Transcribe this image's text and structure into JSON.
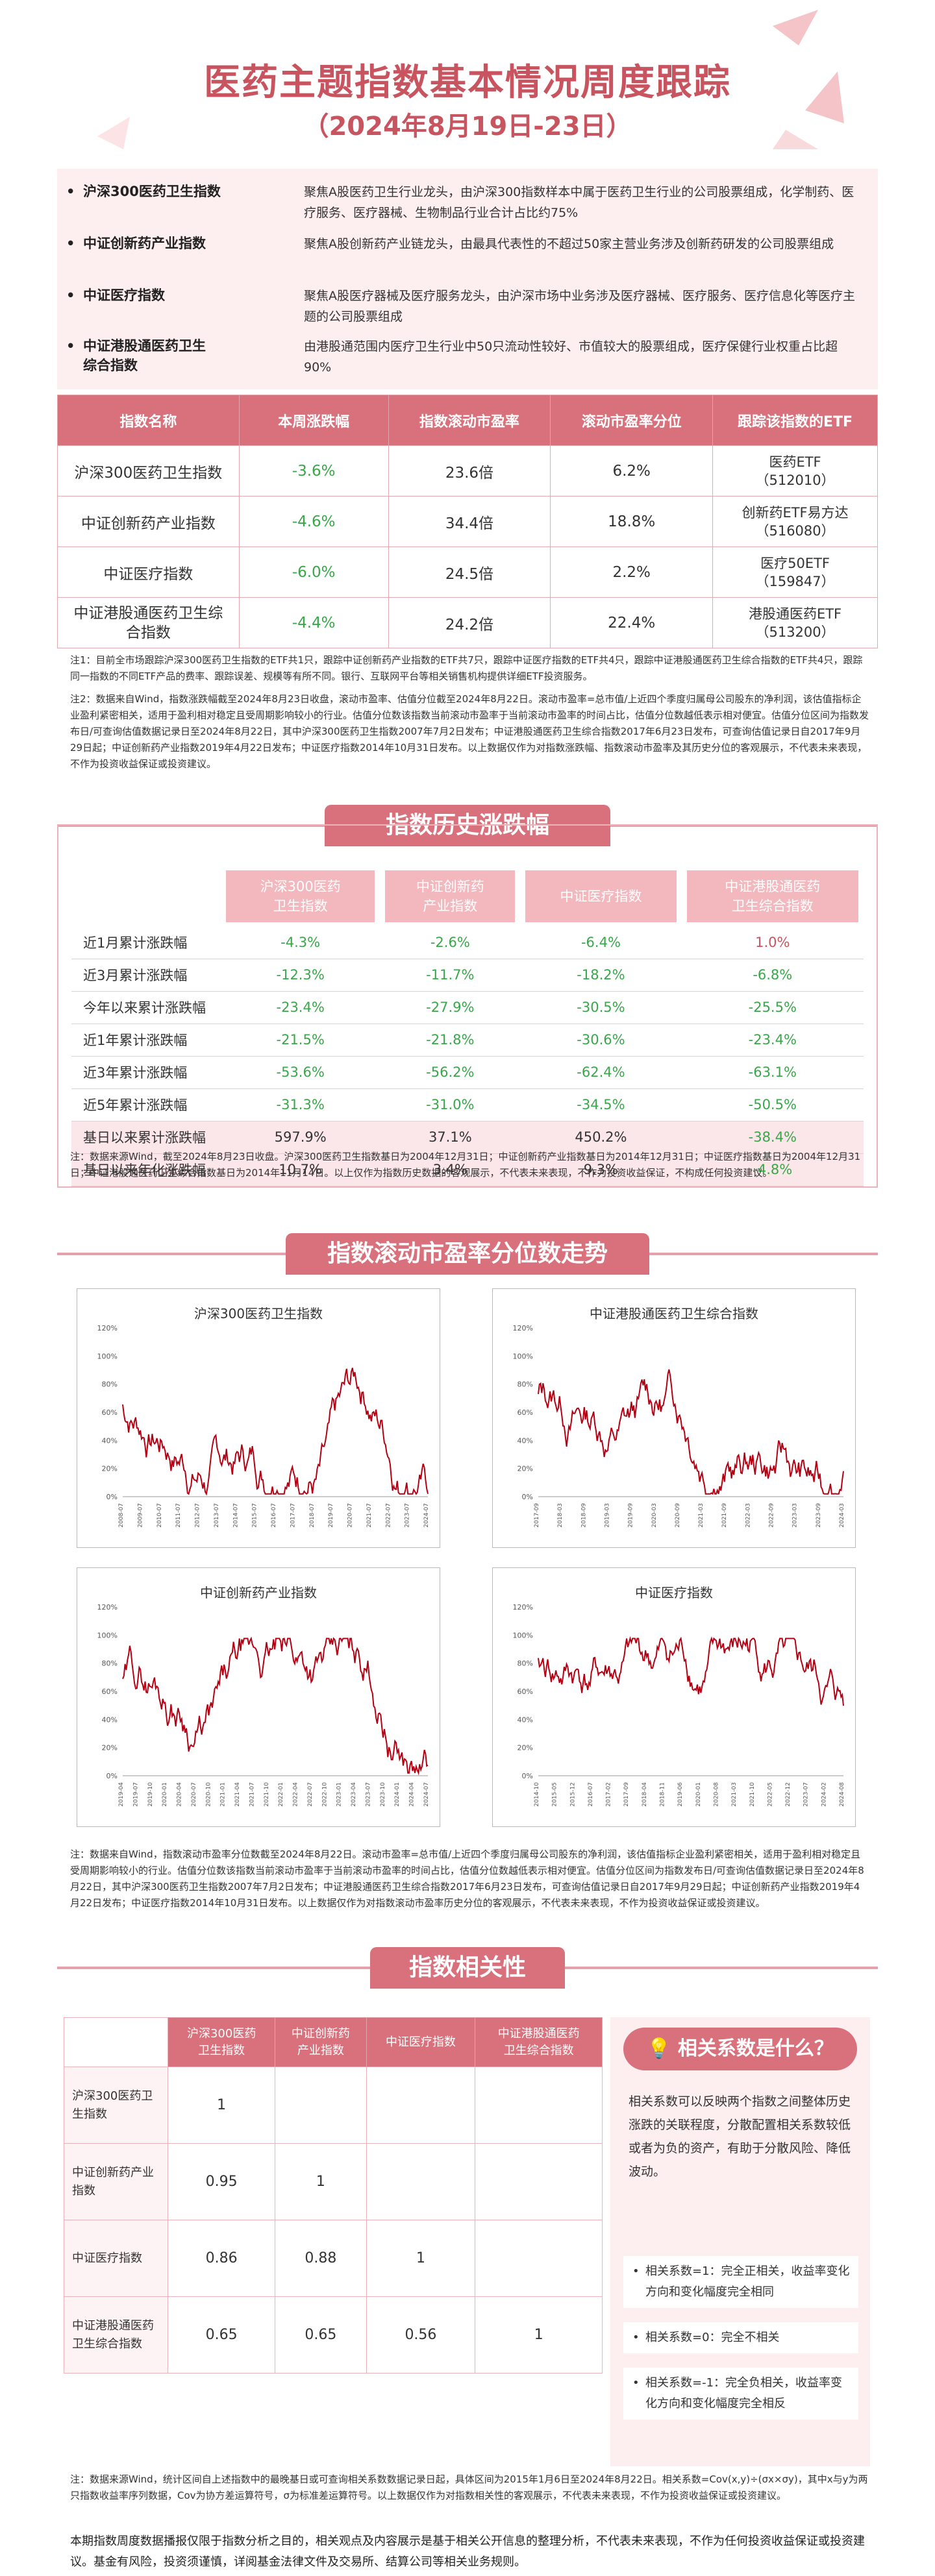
{
  "header": {
    "title": "医药主题指数基本情况周度跟踪",
    "subtitle": "（2024年8月19日-23日）"
  },
  "descriptions": [
    {
      "name": "沪深300医药卫生指数",
      "text": "聚焦A股医药卫生行业龙头，由沪深300指数样本中属于医药卫生行业的公司股票组成，化学制药、医疗服务、医疗器械、生物制品行业合计占比约75%"
    },
    {
      "name": "中证创新药产业指数",
      "text": "聚焦A股创新药产业链龙头，由最具代表性的不超过50家主营业务涉及创新药研发的公司股票组成"
    },
    {
      "name": "中证医疗指数",
      "text": "聚焦A股医疗器械及医疗服务龙头，由沪深市场中业务涉及医疗器械、医疗服务、医疗信息化等医疗主题的公司股票组成"
    },
    {
      "name_line1": "中证港股通医药卫生",
      "name_line2": "综合指数",
      "text": "由港股通范围内医疗卫生行业中50只流动性较好、市值较大的股票组成，医疗保健行业权重占比超90%"
    }
  ],
  "main_table": {
    "headers": [
      "指数名称",
      "本周涨跌幅",
      "指数滚动市盈率",
      "滚动市盈率分位",
      "跟踪该指数的ETF"
    ],
    "rows": [
      {
        "name": "沪深300医药卫生指数",
        "change": "-3.6%",
        "pe": "23.6倍",
        "pct": "6.2%",
        "etf1": "医药ETF",
        "etf2": "（512010）"
      },
      {
        "name": "中证创新药产业指数",
        "change": "-4.6%",
        "pe": "34.4倍",
        "pct": "18.8%",
        "etf1": "创新药ETF易方达",
        "etf2": "（516080）"
      },
      {
        "name": "中证医疗指数",
        "change": "-6.0%",
        "pe": "24.5倍",
        "pct": "2.2%",
        "etf1": "医疗50ETF",
        "etf2": "（159847）"
      },
      {
        "name_line1": "中证港股通医药卫生综",
        "name_line2": "合指数",
        "change": "-4.4%",
        "pe": "24.2倍",
        "pct": "22.4%",
        "etf1": "港股通医药ETF",
        "etf2": "（513200）"
      }
    ]
  },
  "notes1": [
    "注1：目前全市场跟踪沪深300医药卫生指数的ETF共1只，跟踪中证创新药产业指数的ETF共7只，跟踪中证医疗指数的ETF共4只，跟踪中证港股通医药卫生综合指数的ETF共4只，跟踪同一指数的不同ETF产品的费率、跟踪误差、规模等有所不同。银行、互联网平台等相关销售机构提供详细ETF投资服务。",
    "注2：数据来自Wind，指数涨跌幅截至2024年8月23日收盘，滚动市盈率、估值分位截至2024年8月22日。滚动市盈率=总市值/上近四个季度归属母公司股东的净利润，该估值指标企业盈利紧密相关，适用于盈利相对稳定且受周期影响较小的行业。估值分位数该指数当前滚动市盈率于当前滚动市盈率的时间占比，估值分位数越低表示相对便宜。估值分位区间为指数发布日/可查询估值数据记录日至2024年8月22日，其中沪深300医药卫生指数2007年7月2日发布；中证港股通医药卫生综合指数2017年6月23日发布，可查询估值记录日自2017年9月29日起；中证创新药产业指数2019年4月22日发布；中证医疗指数2014年10月31日发布。以上数据仅作为对指数涨跌幅、指数滚动市盈率及其历史分位的客观展示，不代表未来表现，不作为投资收益保证或投资建议。"
  ],
  "history": {
    "banner": "指数历史涨跌幅",
    "headers": [
      {
        "l1": "沪深300医药",
        "l2": "卫生指数"
      },
      {
        "l1": "中证创新药",
        "l2": "产业指数"
      },
      {
        "l1": "中证医疗指数",
        "l2": ""
      },
      {
        "l1": "中证港股通医药",
        "l2": "卫生综合指数"
      }
    ],
    "rows": [
      {
        "label": "近1月累计涨跌幅",
        "v": [
          "-4.3%",
          "-2.6%",
          "-6.4%",
          "1.0%"
        ]
      },
      {
        "label": "近3月累计涨跌幅",
        "v": [
          "-12.3%",
          "-11.7%",
          "-18.2%",
          "-6.8%"
        ]
      },
      {
        "label": "今年以来累计涨跌幅",
        "v": [
          "-23.4%",
          "-27.9%",
          "-30.5%",
          "-25.5%"
        ]
      },
      {
        "label": "近1年累计涨跌幅",
        "v": [
          "-21.5%",
          "-21.8%",
          "-30.6%",
          "-23.4%"
        ]
      },
      {
        "label": "近3年累计涨跌幅",
        "v": [
          "-53.6%",
          "-56.2%",
          "-62.4%",
          "-63.1%"
        ]
      },
      {
        "label": "近5年累计涨跌幅",
        "v": [
          "-31.3%",
          "-31.0%",
          "-34.5%",
          "-50.5%"
        ]
      },
      {
        "label": "基日以来累计涨跌幅",
        "v": [
          "597.9%",
          "37.1%",
          "450.2%",
          "-38.4%"
        ]
      },
      {
        "label": "基日以来年化涨跌幅",
        "v": [
          "10.7%",
          "3.4%",
          "9.3%",
          "-4.8%"
        ]
      }
    ],
    "note": "注：数据来源Wind，截至2024年8月23日收盘。沪深300医药卫生指数基日为2004年12月31日；中证创新药产业指数基日为2014年12月31日；中证医疗指数基日为2004年12月31日；中证港股通医药卫生综合指数基日为2014年11月14日。以上仅作为指数历史数据的客观展示，不代表未来表现，不作为投资收益保证，不构成任何投资建议。"
  },
  "pe_charts": {
    "banner": "指数滚动市盈率分位数走势",
    "panels": [
      {
        "title": "沪深300医药卫生指数",
        "yticks": [
          "120%",
          "100%",
          "80%",
          "60%",
          "40%",
          "20%",
          "0%"
        ],
        "xticks": [
          "2008-07",
          "2009-07",
          "2010-07",
          "2011-07",
          "2012-07",
          "2013-07",
          "2014-07",
          "2015-07",
          "2016-07",
          "2017-07",
          "2018-07",
          "2019-07",
          "2020-07",
          "2021-07",
          "2022-07",
          "2023-07",
          "2024-07"
        ]
      },
      {
        "title": "中证港股通医药卫生综合指数",
        "yticks": [
          "120%",
          "100%",
          "80%",
          "60%",
          "40%",
          "20%",
          "0%"
        ],
        "xticks": [
          "2017-09",
          "2018-03",
          "2018-09",
          "2019-03",
          "2019-09",
          "2020-03",
          "2020-09",
          "2021-03",
          "2021-09",
          "2022-03",
          "2022-09",
          "2023-03",
          "2023-09",
          "2024-03"
        ]
      },
      {
        "title": "中证创新药产业指数",
        "yticks": [
          "120%",
          "100%",
          "80%",
          "60%",
          "40%",
          "20%",
          "0%"
        ],
        "xticks": [
          "2019-04",
          "2019-07",
          "2019-10",
          "2020-01",
          "2020-04",
          "2020-07",
          "2020-10",
          "2021-01",
          "2021-04",
          "2021-07",
          "2021-10",
          "2022-01",
          "2022-04",
          "2022-07",
          "2022-10",
          "2023-01",
          "2023-04",
          "2023-07",
          "2023-10",
          "2024-01",
          "2024-04",
          "2024-07"
        ]
      },
      {
        "title": "中证医疗指数",
        "yticks": [
          "120%",
          "100%",
          "80%",
          "60%",
          "40%",
          "20%",
          "0%"
        ],
        "xticks": [
          "2014-10",
          "2015-05",
          "2015-12",
          "2016-07",
          "2017-02",
          "2017-09",
          "2018-04",
          "2018-11",
          "2019-06",
          "2020-01",
          "2020-08",
          "2021-03",
          "2021-10",
          "2022-05",
          "2022-12",
          "2023-07",
          "2024-02",
          "2024-08"
        ]
      }
    ],
    "note": "注：数据来自Wind，指数滚动市盈率分位数截至2024年8月22日。滚动市盈率=总市值/上近四个季度归属母公司股东的净利润，该估值指标企业盈利紧密相关，适用于盈利相对稳定且受周期影响较小的行业。估值分位数该指数当前滚动市盈率于当前滚动市盈率的时间占比，估值分位数越低表示相对便宜。估值分位区间为指数发布日/可查询估值数据记录日至2024年8月22日，其中沪深300医药卫生指数2007年7月2日发布；中证港股通医药卫生综合指数2017年6月23日发布，可查询估值记录日自2017年9月29日起；中证创新药产业指数2019年4月22日发布；中证医疗指数2014年10月31日发布。以上数据仅作为对指数滚动市盈率历史分位的客观展示，不代表未来表现，不作为投资收益保证或投资建议。"
  },
  "correlation": {
    "banner": "指数相关性",
    "headers": [
      {
        "l1": "沪深300医药",
        "l2": "卫生指数"
      },
      {
        "l1": "中证创新药",
        "l2": "产业指数"
      },
      {
        "l1": "中证医疗指数",
        "l2": ""
      },
      {
        "l1": "中证港股通医药",
        "l2": "卫生综合指数"
      }
    ],
    "rows": [
      {
        "l1": "沪深300医药卫",
        "l2": "生指数",
        "v": [
          "1",
          "",
          "",
          ""
        ]
      },
      {
        "l1": "中证创新药产业",
        "l2": "指数",
        "v": [
          "0.95",
          "1",
          "",
          ""
        ]
      },
      {
        "l1": "中证医疗指数",
        "l2": "",
        "v": [
          "0.86",
          "0.88",
          "1",
          ""
        ]
      },
      {
        "l1": "中证港股通医药",
        "l2": "卫生综合指数",
        "v": [
          "0.65",
          "0.65",
          "0.56",
          "1"
        ]
      }
    ],
    "explain_title": "相关系数是什么？",
    "explain_text": "相关系数可以反映两个指数之间整体历史涨跌的关联程度，分散配置相关系数较低或者为负的资产，有助于分散风险、降低波动。",
    "explain_items": [
      "相关系数=1：完全正相关，收益率变化方向和变化幅度完全相同",
      "相关系数=0：完全不相关",
      "相关系数=-1：完全负相关，收益率变化方向和变化幅度完全相反"
    ],
    "note": "注：数据来源Wind，统计区间自上述指数中的最晚基日或可查询相关系数数据记录日起，具体区间为2015年1月6日至2024年8月22日。相关系数=Cov(x,y)÷(σx×σy)，其中x与y为两只指数收益率序列数据，Cov为协方差运算符号，σ为标准差运算符号。以上数据仅作为对指数相关性的客观展示，不代表未来表现，不作为投资收益保证或投资建议。"
  },
  "footer": "本期指数周度数据播报仅限于指数分析之目的，相关观点及内容展示是基于相关公开信息的整理分析，不代表未来表现，不作为任何投资收益保证或投资建议。基金有风险，投资须谨慎，详阅基金法律文件及交易所、结算公司等相关业务规则。"
}
